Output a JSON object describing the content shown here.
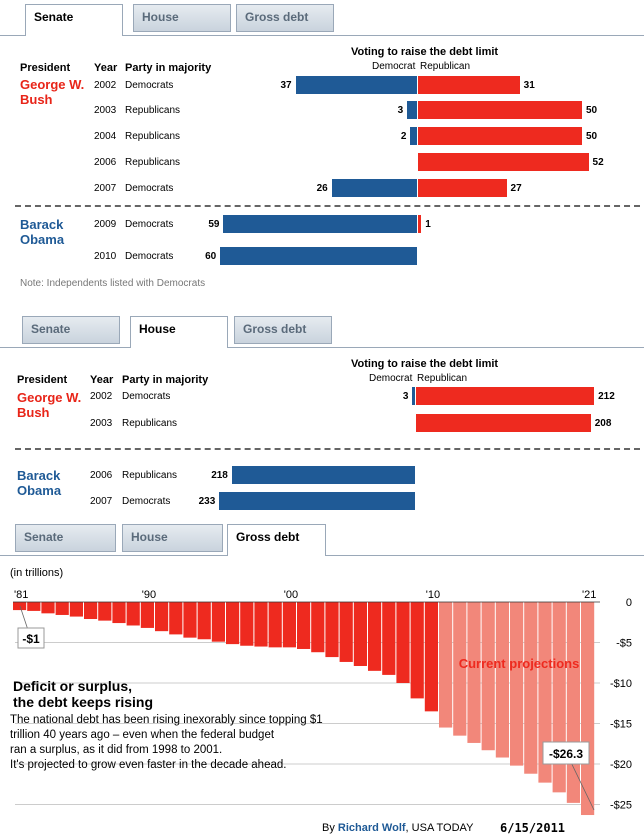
{
  "tabs": [
    "Senate",
    "House",
    "Gross debt"
  ],
  "senate": {
    "title": "Voting to raise the debt limit",
    "legend_dem": "Democrat",
    "legend_rep": "Republican",
    "col_president": "President",
    "col_year": "Year",
    "col_party": "Party in majority",
    "note": "Note: Independents listed with Democrats"
  },
  "house": {
    "title": "Voting to raise the debt limit",
    "legend_dem": "Democrat",
    "legend_rep": "Republican",
    "col_president": "President",
    "col_year": "Year",
    "col_party": "Party in majority"
  },
  "colors": {
    "dem": "#1f5a96",
    "rep": "#ee2a1f",
    "proj": "#f2877a",
    "bush": "#e82418",
    "obama": "#1f5a96"
  },
  "chart_data": [
    {
      "type": "bar",
      "title": "Senate: Voting to raise the debt limit",
      "series_names": [
        "Democrat",
        "Republican"
      ],
      "rows": [
        {
          "president": "George W. Bush",
          "year": "2002",
          "party": "Democrats",
          "dem": 37,
          "rep": 31
        },
        {
          "president": "George W. Bush",
          "year": "2003",
          "party": "Republicans",
          "dem": 3,
          "rep": 50
        },
        {
          "president": "George W. Bush",
          "year": "2004",
          "party": "Republicans",
          "dem": 2,
          "rep": 50
        },
        {
          "president": "George W. Bush",
          "year": "2006",
          "party": "Republicans",
          "dem": null,
          "rep": 52
        },
        {
          "president": "George W. Bush",
          "year": "2007",
          "party": "Democrats",
          "dem": 26,
          "rep": 27
        },
        {
          "president": "Barack Obama",
          "year": "2009",
          "party": "Democrats",
          "dem": 59,
          "rep": 1
        },
        {
          "president": "Barack Obama",
          "year": "2010",
          "party": "Democrats",
          "dem": 60,
          "rep": null
        }
      ]
    },
    {
      "type": "bar",
      "title": "House: Voting to raise the debt limit",
      "series_names": [
        "Democrat",
        "Republican"
      ],
      "rows": [
        {
          "president": "George W. Bush",
          "year": "2002",
          "party": "Democrats",
          "dem": 3,
          "rep": 212
        },
        {
          "president": "George W. Bush",
          "year": "2003",
          "party": "Republicans",
          "dem": null,
          "rep": 208
        },
        {
          "president": "Barack Obama",
          "year": "2006",
          "party": "Republicans",
          "dem": 218,
          "rep": null
        },
        {
          "president": "Barack Obama",
          "year": "2007",
          "party": "Democrats",
          "dem": 233,
          "rep": null
        }
      ]
    },
    {
      "type": "bar",
      "title": "Deficit or surplus, the debt keeps rising",
      "ylabel": "(in trillions)",
      "x_tick_labels": [
        "'81",
        "'90",
        "'00",
        "'10",
        "'21"
      ],
      "y_tick_labels": [
        "0",
        "-$5",
        "-$10",
        "-$15",
        "-$20",
        "-$25"
      ],
      "ylim": [
        -26.3,
        0
      ],
      "projection_label": "Current projections",
      "start_label": "-$1",
      "end_label": "-$26.3",
      "years": [
        1981,
        1982,
        1983,
        1984,
        1985,
        1986,
        1987,
        1988,
        1989,
        1990,
        1991,
        1992,
        1993,
        1994,
        1995,
        1996,
        1997,
        1998,
        1999,
        2000,
        2001,
        2002,
        2003,
        2004,
        2005,
        2006,
        2007,
        2008,
        2009,
        2010,
        2011,
        2012,
        2013,
        2014,
        2015,
        2016,
        2017,
        2018,
        2019,
        2020,
        2021
      ],
      "values": [
        -1.0,
        -1.1,
        -1.4,
        -1.6,
        -1.8,
        -2.1,
        -2.3,
        -2.6,
        -2.9,
        -3.2,
        -3.6,
        -4.0,
        -4.4,
        -4.6,
        -4.9,
        -5.2,
        -5.4,
        -5.5,
        -5.6,
        -5.6,
        -5.8,
        -6.2,
        -6.8,
        -7.4,
        -7.9,
        -8.5,
        -9.0,
        -10.0,
        -11.9,
        -13.5,
        -15.5,
        -16.5,
        -17.4,
        -18.3,
        -19.2,
        -20.2,
        -21.2,
        -22.3,
        -23.5,
        -24.8,
        -26.3
      ],
      "projection_start_year": 2011
    }
  ],
  "gross_debt": {
    "axis_label": "(in trillions)",
    "heading": "Deficit or surplus, the debt keeps rising",
    "body": "The national debt has been rising inexorably since topping $1 trillion 40 years ago – even when the federal budget ran a surplus, as it did from 1998 to 2001. It's projected to grow even faster in the decade ahead."
  },
  "footer": {
    "by": "By",
    "author": "Richard Wolf",
    "org": ", USA TODAY",
    "date": "6/15/2011"
  }
}
